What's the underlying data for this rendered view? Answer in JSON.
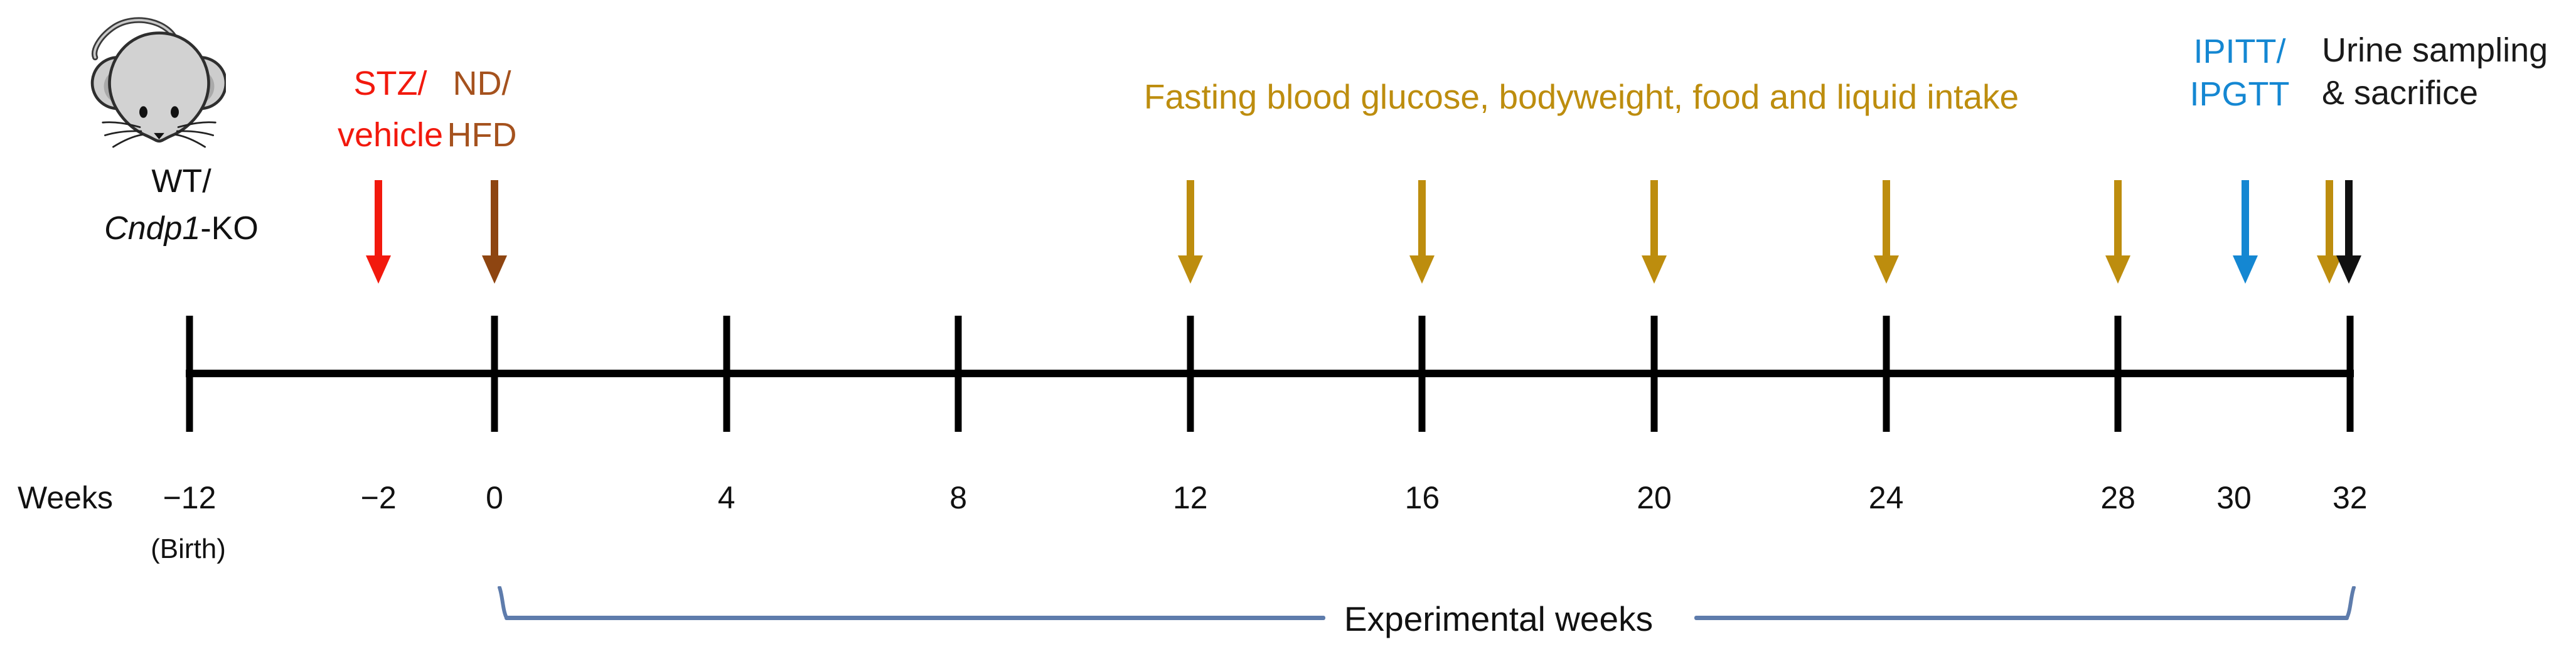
{
  "figure": {
    "background": "#ffffff",
    "axis_color": "#000000"
  },
  "mouse": {
    "icon": "mouse-icon",
    "label_top": "WT/",
    "label_italic": "Cndp1",
    "label_suffix": "-KO"
  },
  "axis": {
    "label": "Weeks",
    "birth_note": "(Birth)",
    "tick_weeks": [
      -12,
      0,
      4,
      8,
      12,
      16,
      20,
      24,
      28,
      32
    ],
    "week_labels": [
      {
        "week": -12,
        "text": "−12"
      },
      {
        "week": -2,
        "text": "−2"
      },
      {
        "week": 0,
        "text": "0"
      },
      {
        "week": 4,
        "text": "4"
      },
      {
        "week": 8,
        "text": "8"
      },
      {
        "week": 12,
        "text": "12"
      },
      {
        "week": 16,
        "text": "16"
      },
      {
        "week": 20,
        "text": "20"
      },
      {
        "week": 24,
        "text": "24"
      },
      {
        "week": 28,
        "text": "28"
      },
      {
        "week": 30,
        "text": "30"
      },
      {
        "week": 32,
        "text": "32"
      }
    ]
  },
  "events": [
    {
      "id": "stz_vehicle",
      "label_lines": [
        "STZ/",
        "vehicle"
      ],
      "text_color": "#F2190D",
      "arrows": [
        {
          "week": -2,
          "color": "#F2190D"
        }
      ]
    },
    {
      "id": "nd_hfd",
      "label_lines": [
        "ND/",
        "HFD"
      ],
      "text_color": "#A5521E",
      "arrows": [
        {
          "week": 0,
          "color": "#8E4511"
        }
      ]
    },
    {
      "id": "monitoring",
      "label_lines": [
        "Fasting blood glucose, bodyweight, food and liquid intake"
      ],
      "text_color": "#BD8D0E",
      "arrows": [
        {
          "week": 12,
          "color": "#BD8D0E"
        },
        {
          "week": 16,
          "color": "#BD8D0E"
        },
        {
          "week": 20,
          "color": "#BD8D0E"
        },
        {
          "week": 24,
          "color": "#BD8D0E"
        },
        {
          "week": 28,
          "color": "#BD8D0E"
        },
        {
          "week": 31.65,
          "color": "#BD8D0E"
        }
      ]
    },
    {
      "id": "ipitt_ipgtt",
      "label_lines": [
        "IPITT/",
        "IPGTT"
      ],
      "text_color": "#1487D2",
      "arrows": [
        {
          "week": 30.2,
          "color": "#1487D2"
        }
      ]
    },
    {
      "id": "urine_sacrifice",
      "label_lines": [
        "Urine sampling",
        "& sacrifice"
      ],
      "text_color": "#1A1A1A",
      "arrows": [
        {
          "week": 31.98,
          "color": "#111111"
        }
      ]
    }
  ],
  "bracket": {
    "label": "Experimental weeks",
    "color": "#5E7CAC",
    "from_week": 0,
    "to_week": 32
  }
}
